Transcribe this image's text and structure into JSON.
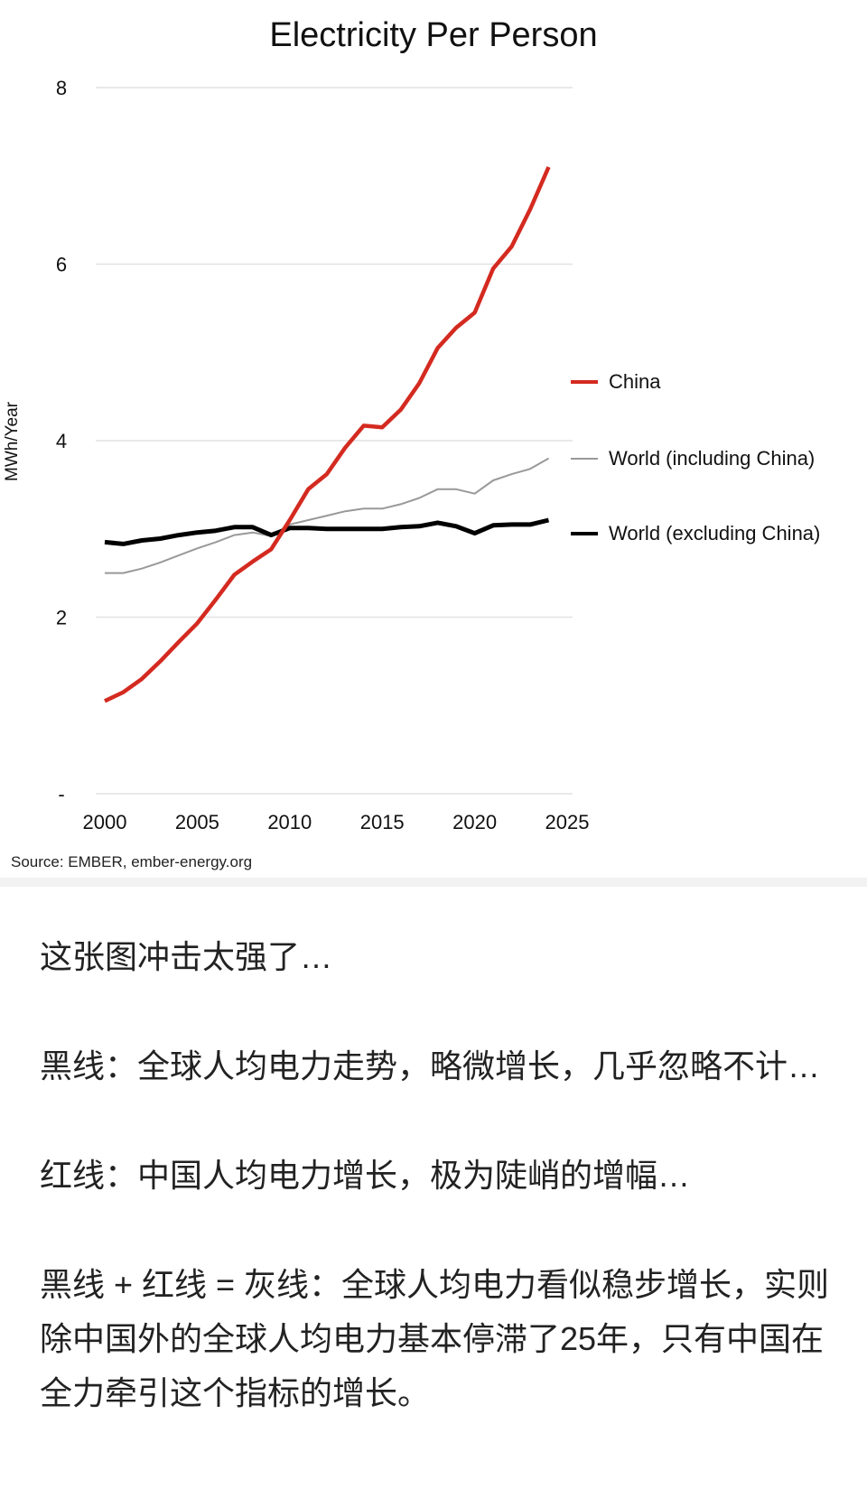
{
  "chart_data": {
    "type": "line",
    "title": "Electricity Per Person",
    "ylabel": "MWh/Year",
    "xlabel": "",
    "xlim": [
      2000,
      2025
    ],
    "ylim": [
      0,
      8
    ],
    "x_ticks": [
      "2000",
      "2005",
      "2010",
      "2015",
      "2020",
      "2025"
    ],
    "y_ticks": [
      "-",
      "2",
      "4",
      "6",
      "8"
    ],
    "grid": "horizontal",
    "legend_position": "right",
    "x": [
      2000,
      2001,
      2002,
      2003,
      2004,
      2005,
      2006,
      2007,
      2008,
      2009,
      2010,
      2011,
      2012,
      2013,
      2014,
      2015,
      2016,
      2017,
      2018,
      2019,
      2020,
      2021,
      2022,
      2023,
      2024
    ],
    "series": [
      {
        "name": "China",
        "color": "#d42a20",
        "values": [
          1.05,
          1.15,
          1.3,
          1.5,
          1.72,
          1.93,
          2.2,
          2.48,
          2.63,
          2.77,
          3.1,
          3.45,
          3.62,
          3.92,
          4.17,
          4.15,
          4.35,
          4.65,
          5.05,
          5.28,
          5.45,
          5.95,
          6.2,
          6.62,
          7.1
        ]
      },
      {
        "name": "World (including China)",
        "color": "#999999",
        "values": [
          2.5,
          2.5,
          2.55,
          2.62,
          2.7,
          2.78,
          2.85,
          2.93,
          2.96,
          2.92,
          3.05,
          3.1,
          3.15,
          3.2,
          3.23,
          3.23,
          3.28,
          3.35,
          3.45,
          3.45,
          3.4,
          3.55,
          3.62,
          3.68,
          3.8
        ]
      },
      {
        "name": "World (excluding China)",
        "color": "#000000",
        "values": [
          2.85,
          2.83,
          2.87,
          2.89,
          2.93,
          2.96,
          2.98,
          3.02,
          3.02,
          2.93,
          3.01,
          3.01,
          3.0,
          3.0,
          3.0,
          3.0,
          3.02,
          3.03,
          3.07,
          3.03,
          2.95,
          3.04,
          3.05,
          3.05,
          3.1
        ]
      }
    ],
    "source": "Source: EMBER, ember-energy.org"
  },
  "post": {
    "paragraphs": [
      "这张图冲击太强了…",
      "黑线：全球人均电力走势，略微增长，几乎忽略不计…",
      "红线：中国人均电力增长，极为陡峭的增幅…",
      "黑线 + 红线 = 灰线：全球人均电力看似稳步增长，实则除中国外的全球人均电力基本停滞了25年，只有中国在全力牵引这个指标的增长。"
    ]
  }
}
